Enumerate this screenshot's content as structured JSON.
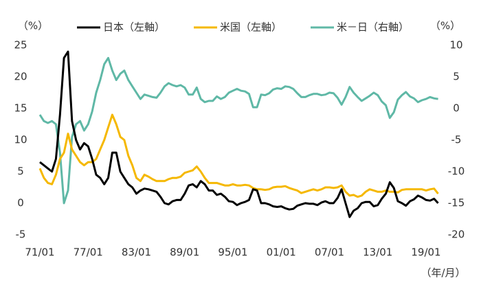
{
  "chart_data": {
    "type": "line",
    "y_label": "（%）",
    "y2_label": "（%）",
    "x_label": "（年/月）",
    "x": [
      "71/01",
      null,
      null,
      null,
      null,
      null,
      null,
      null,
      null,
      null,
      null,
      null,
      "77/01",
      null,
      null,
      null,
      null,
      null,
      null,
      null,
      null,
      null,
      null,
      null,
      "83/01",
      null,
      null,
      null,
      null,
      null,
      null,
      null,
      null,
      null,
      null,
      null,
      "89/01",
      null,
      null,
      null,
      null,
      null,
      null,
      null,
      null,
      null,
      null,
      null,
      "95/01",
      null,
      null,
      null,
      null,
      null,
      null,
      null,
      null,
      null,
      null,
      null,
      "01/01",
      null,
      null,
      null,
      null,
      null,
      null,
      null,
      null,
      null,
      null,
      null,
      "07/01",
      null,
      null,
      null,
      null,
      null,
      null,
      null,
      null,
      null,
      null,
      null,
      "13/01",
      null,
      null,
      null,
      null,
      null,
      null,
      null,
      null,
      null,
      null,
      null,
      "19/01",
      null,
      null,
      null
    ],
    "ylim": [
      -5,
      25
    ],
    "yticks": [
      -5,
      0,
      5,
      10,
      15,
      20,
      25
    ],
    "y2lim": [
      -20,
      10
    ],
    "y2ticks": [
      -20,
      -15,
      -10,
      -5,
      0,
      5,
      10
    ],
    "series": [
      {
        "name": "日本（左軸）",
        "color": "#000000",
        "values": [
          6.5,
          6.0,
          5.5,
          5.0,
          7.0,
          14,
          23,
          24,
          13,
          10,
          8.5,
          9.5,
          9,
          7,
          4.5,
          4,
          3,
          4,
          8,
          8,
          5,
          4,
          3,
          2.5,
          1.5,
          2,
          2.3,
          2.2,
          2,
          1.8,
          1,
          0,
          -0.2,
          0.3,
          0.5,
          0.5,
          1.5,
          2.8,
          3,
          2.5,
          3.5,
          3,
          2,
          2,
          1.3,
          1.5,
          1,
          0.3,
          0.2,
          -0.3,
          0,
          0.2,
          0.5,
          2.2,
          2,
          0,
          0,
          -0.2,
          -0.5,
          -0.6,
          -0.5,
          -0.8,
          -1,
          -0.9,
          -0.4,
          -0.2,
          0,
          -0.1,
          -0.1,
          -0.3,
          0.1,
          0.3,
          0,
          0,
          0.8,
          2.2,
          0,
          -2.2,
          -1.2,
          -0.8,
          0,
          0.2,
          0.2,
          -0.5,
          -0.3,
          0.7,
          1.5,
          3.3,
          2.4,
          0.3,
          0,
          -0.4,
          0.3,
          0.6,
          1.2,
          0.9,
          0.5,
          0.4,
          0.7,
          0
        ]
      },
      {
        "name": "米国（左軸）",
        "color": "#f5b800",
        "values": [
          5.5,
          4.0,
          3.2,
          3.0,
          4.5,
          7.0,
          8,
          11.0,
          8.5,
          7.5,
          6.5,
          6.0,
          6.5,
          6.5,
          7.0,
          8.5,
          10.0,
          12.0,
          14.0,
          12.5,
          10.5,
          10.0,
          7.5,
          6.0,
          4.0,
          3.5,
          4.5,
          4.2,
          3.8,
          3.5,
          3.5,
          3.5,
          3.8,
          4.0,
          4.0,
          4.2,
          4.8,
          5.0,
          5.2,
          5.8,
          5.0,
          4.0,
          3.2,
          3.2,
          3.2,
          3.0,
          2.8,
          2.8,
          3.0,
          2.8,
          2.8,
          2.9,
          2.8,
          2.4,
          2.2,
          2.2,
          2.1,
          2.2,
          2.5,
          2.6,
          2.6,
          2.7,
          2.4,
          2.2,
          2.0,
          1.6,
          1.8,
          2.0,
          2.2,
          2.0,
          2.2,
          2.5,
          2.5,
          2.4,
          2.5,
          2.8,
          1.8,
          1.2,
          1.3,
          1.0,
          1.2,
          1.8,
          2.2,
          2.0,
          1.8,
          1.8,
          2.0,
          1.8,
          1.8,
          1.7,
          2.1,
          2.2,
          2.2,
          2.2,
          2.2,
          2.2,
          2.0,
          2.2,
          2.3,
          1.5
        ]
      },
      {
        "name": "米－日（右軸）",
        "color": "#5fb8a6",
        "axis": "y2",
        "values": [
          -1.0,
          -2.0,
          -2.3,
          -2.0,
          -2.5,
          -7,
          -15,
          -13,
          -4.5,
          -2.5,
          -2,
          -3.5,
          -2.5,
          -0.5,
          2.5,
          4.5,
          7,
          8,
          6,
          4.5,
          5.5,
          6,
          4.5,
          3.5,
          2.5,
          1.5,
          2.2,
          2.0,
          1.8,
          1.7,
          2.5,
          3.5,
          4.0,
          3.7,
          3.5,
          3.7,
          3.3,
          2.2,
          2.2,
          3.3,
          1.5,
          1.0,
          1.2,
          1.2,
          1.9,
          1.5,
          1.8,
          2.5,
          2.8,
          3.1,
          2.8,
          2.7,
          2.3,
          0.2,
          0.2,
          2.2,
          2.1,
          2.4,
          3.0,
          3.2,
          3.1,
          3.5,
          3.4,
          3.1,
          2.4,
          1.8,
          1.8,
          2.1,
          2.3,
          2.3,
          2.1,
          2.2,
          2.5,
          2.4,
          1.7,
          0.6,
          1.8,
          3.4,
          2.5,
          1.8,
          1.2,
          1.6,
          2.0,
          2.5,
          2.1,
          1.1,
          0.5,
          -1.5,
          -0.6,
          1.4,
          2.1,
          2.6,
          1.9,
          1.6,
          1.0,
          1.3,
          1.5,
          1.8,
          1.6,
          1.5
        ]
      }
    ]
  }
}
